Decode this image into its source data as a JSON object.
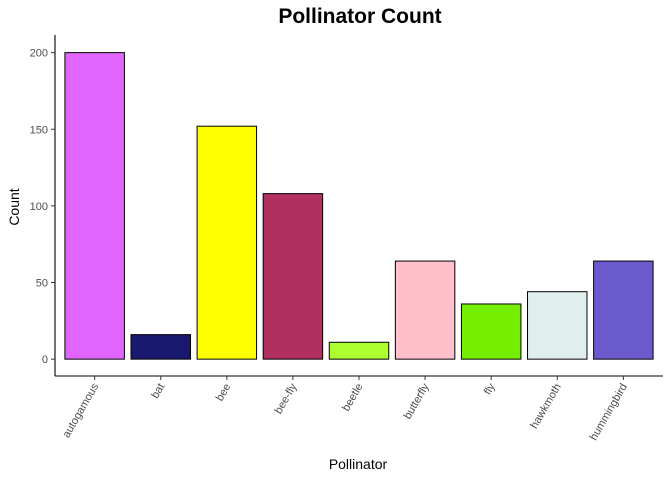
{
  "chart_data": {
    "type": "bar",
    "title": "Pollinator Count",
    "xlabel": "Pollinator",
    "ylabel": "Count",
    "ylim": [
      0,
      210
    ],
    "yticks": [
      0,
      50,
      100,
      150,
      200
    ],
    "grid": false,
    "categories": [
      "autogamous",
      "bat",
      "bee",
      "bee-fly",
      "beetle",
      "butterfly",
      "fly",
      "hawkmoth",
      "hummingbird"
    ],
    "values": [
      200,
      16,
      152,
      108,
      11,
      64,
      36,
      44,
      64
    ],
    "colors": [
      "#E066FF",
      "#191970",
      "#FFFF00",
      "#B03060",
      "#ADFF2F",
      "#FFC0CB",
      "#76EE00",
      "#E0EEEE",
      "#6A5ACD"
    ],
    "bar_outline_color": "#000000"
  }
}
